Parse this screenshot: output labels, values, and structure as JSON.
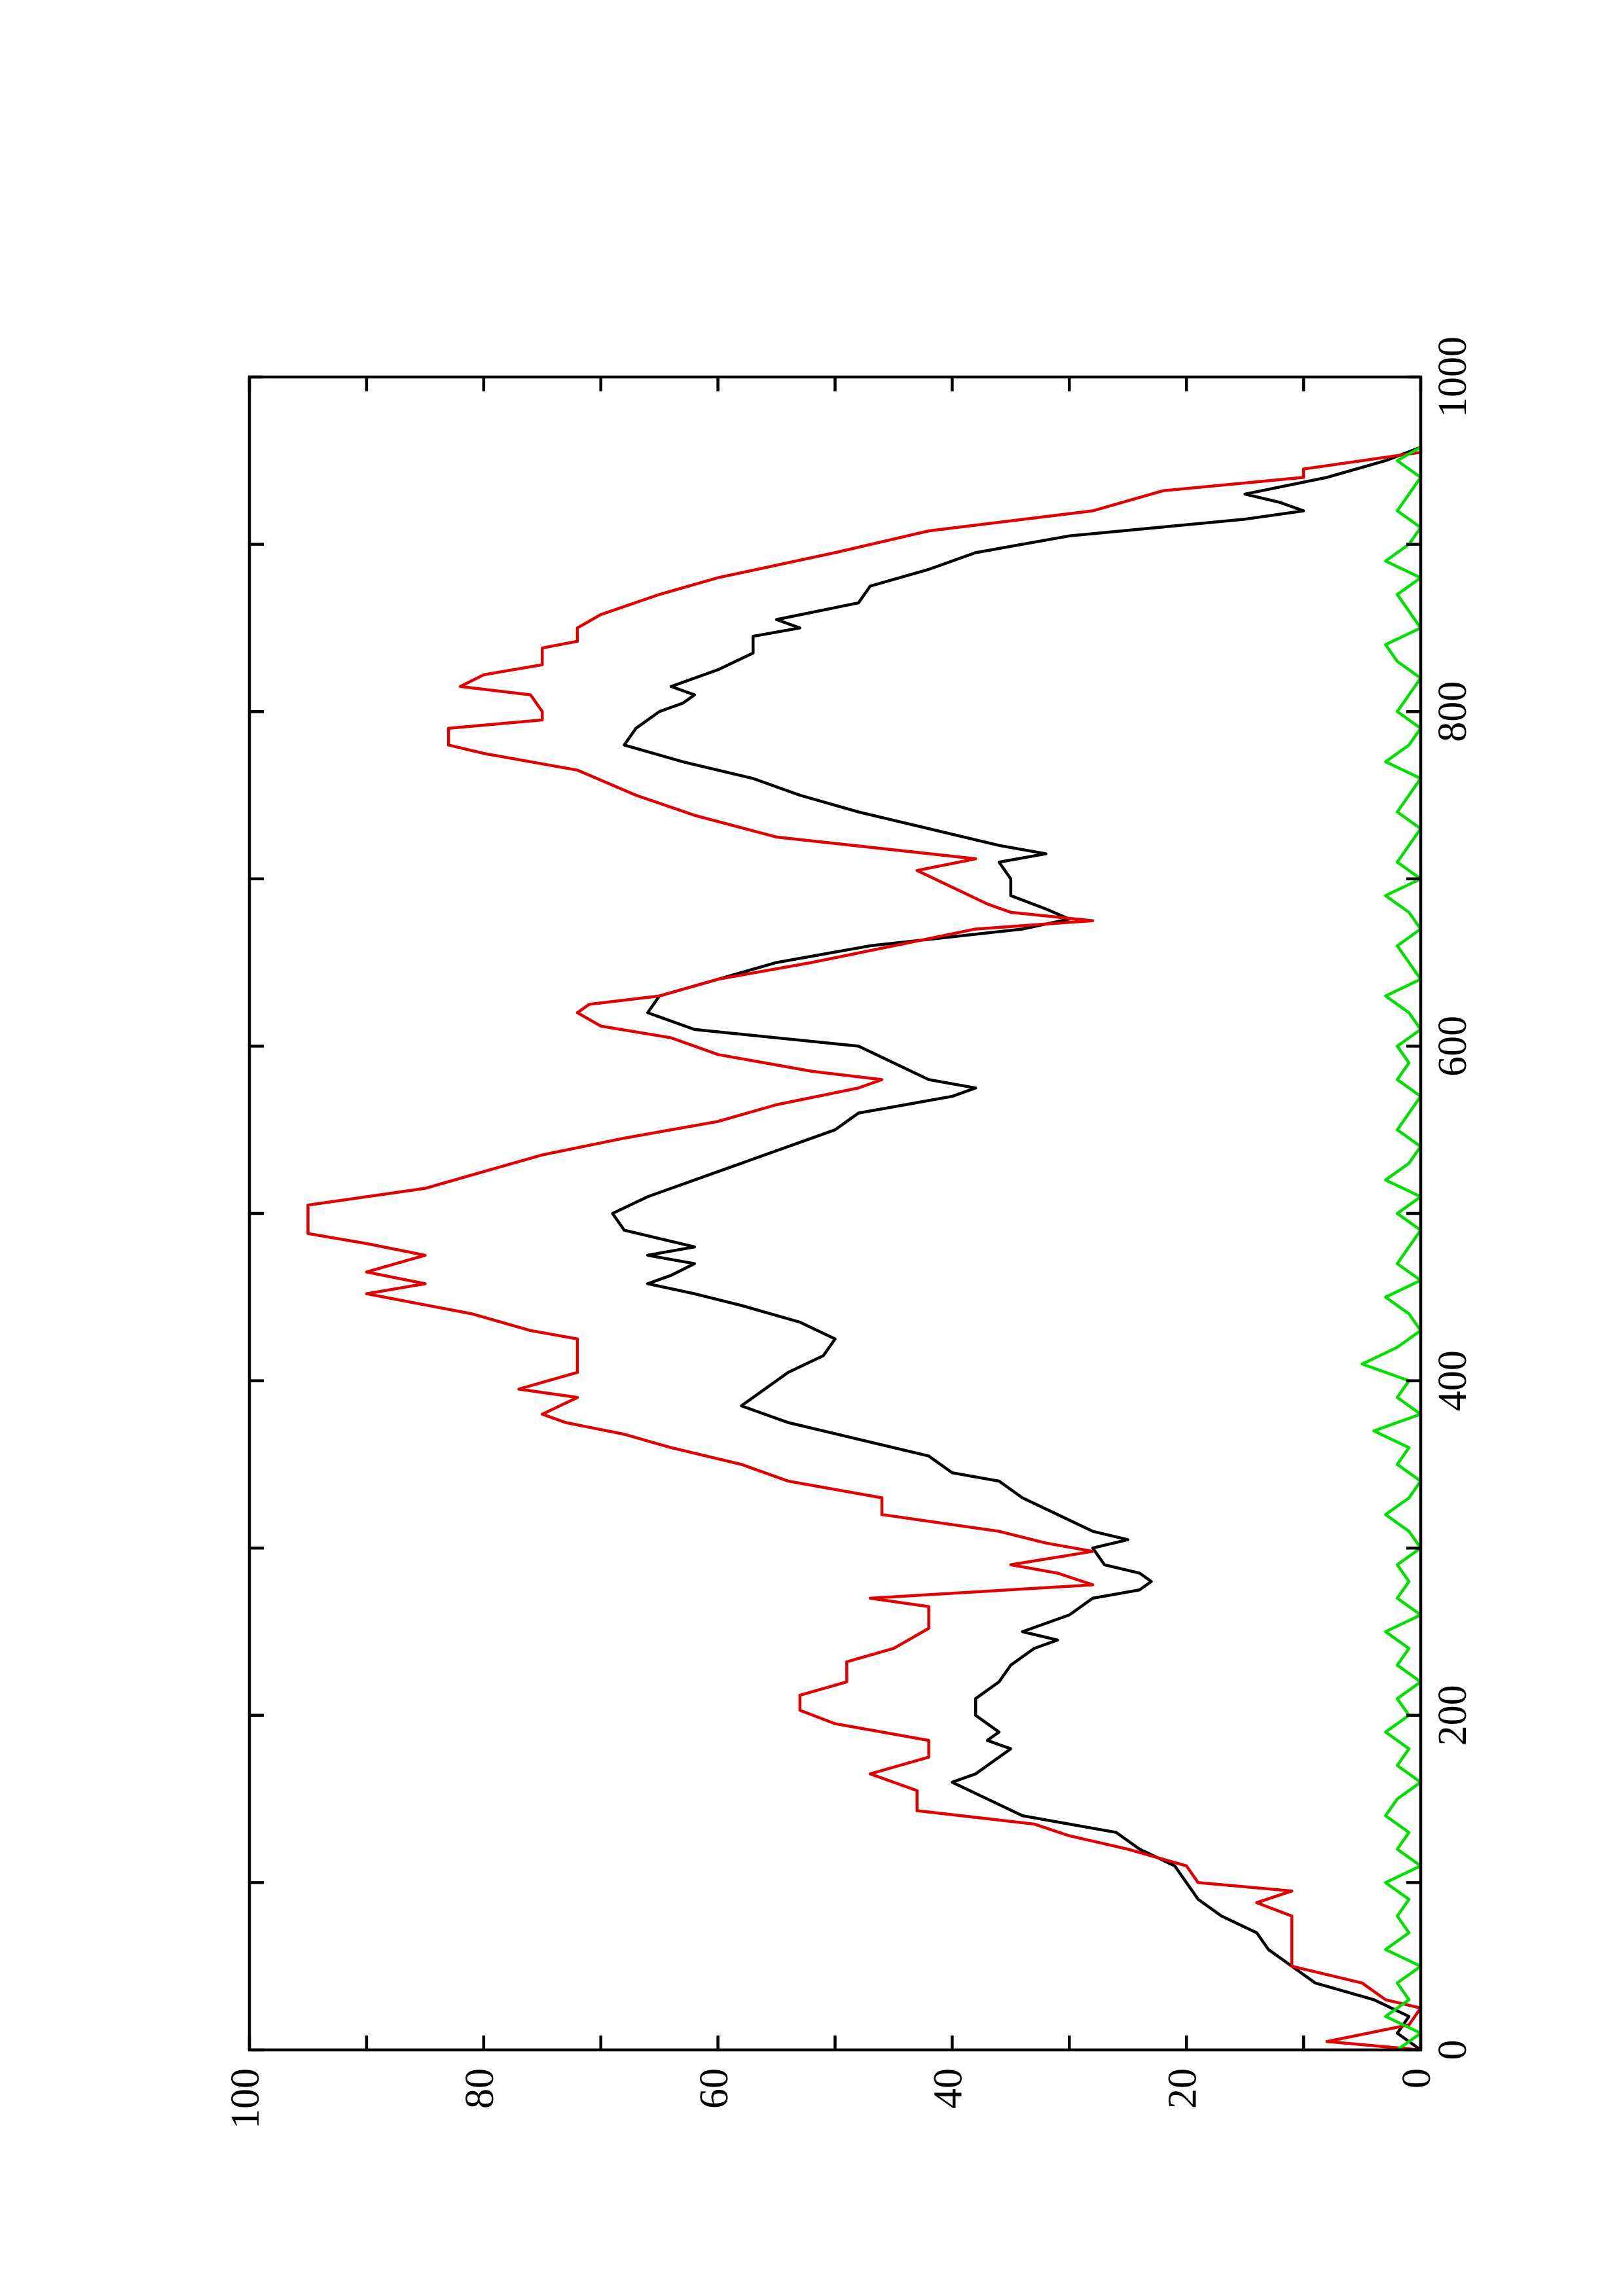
{
  "chart_data": {
    "type": "line",
    "xlim": [
      0,
      1000
    ],
    "xticks": [
      0,
      200,
      400,
      600,
      800,
      1000
    ],
    "xminorticks": [
      100,
      300,
      500,
      700,
      900
    ],
    "ylim": [
      0,
      100
    ],
    "yticks": [
      0,
      20,
      40,
      60,
      80,
      100
    ],
    "yminorticks": [
      10,
      30,
      50,
      70,
      90
    ],
    "series": [
      {
        "color": "#000000",
        "x": [
          0,
          10,
          20,
          30,
          40,
          50,
          60,
          70,
          80,
          90,
          100,
          110,
          120,
          130,
          140,
          150,
          160,
          165,
          170,
          180,
          185,
          190,
          200,
          210,
          220,
          230,
          240,
          245,
          250,
          260,
          270,
          275,
          280,
          285,
          290,
          300,
          305,
          310,
          320,
          330,
          340,
          345,
          355,
          365,
          375,
          385,
          395,
          405,
          415,
          425,
          435,
          445,
          452,
          458,
          463,
          470,
          475,
          480,
          490,
          500,
          510,
          520,
          530,
          540,
          550,
          560,
          570,
          575,
          580,
          590,
          600,
          610,
          620,
          630,
          640,
          650,
          660,
          670,
          676,
          682,
          690,
          700,
          710,
          715,
          720,
          730,
          740,
          750,
          760,
          770,
          780,
          790,
          800,
          805,
          810,
          815,
          825,
          835,
          845,
          850,
          855,
          865,
          875,
          885,
          895,
          905,
          915,
          920,
          925,
          930,
          940,
          950,
          958
        ],
        "values": [
          0,
          2,
          1,
          4,
          9,
          11,
          13,
          14,
          17,
          19,
          20,
          21,
          24,
          26,
          34,
          37,
          40,
          38,
          37,
          35,
          37,
          36,
          38,
          38,
          36,
          35,
          33,
          31,
          34,
          30,
          28,
          24,
          23,
          24,
          27,
          28,
          25,
          28,
          31,
          34,
          36,
          40,
          42,
          48,
          54,
          58,
          56,
          54,
          51,
          50,
          53,
          58,
          62,
          66,
          64,
          62,
          66,
          62,
          68,
          69,
          66,
          62,
          58,
          54,
          50,
          48,
          40,
          38,
          42,
          45,
          48,
          62,
          66,
          65,
          60,
          55,
          47,
          34,
          30,
          32,
          35,
          35,
          36,
          32,
          36,
          42,
          48,
          53,
          57,
          63,
          68,
          67,
          65,
          63,
          62,
          64,
          60,
          57,
          57,
          53,
          55,
          48,
          47,
          42,
          38,
          30,
          15,
          10,
          12,
          15,
          8,
          3,
          0
        ]
      },
      {
        "color": "#e00000",
        "x": [
          0,
          5,
          15,
          25,
          30,
          40,
          50,
          80,
          88,
          95,
          100,
          110,
          120,
          128,
          135,
          143,
          155,
          165,
          175,
          185,
          195,
          203,
          212,
          220,
          232,
          240,
          252,
          265,
          270,
          278,
          285,
          290,
          298,
          303,
          310,
          320,
          330,
          340,
          350,
          360,
          368,
          375,
          380,
          390,
          395,
          405,
          425,
          430,
          440,
          452,
          458,
          465,
          475,
          482,
          488,
          505,
          515,
          525,
          535,
          545,
          555,
          565,
          575,
          580,
          585,
          595,
          605,
          612,
          620,
          625,
          630,
          640,
          650,
          660,
          670,
          675,
          680,
          685,
          695,
          705,
          712,
          725,
          738,
          750,
          765,
          775,
          780,
          790,
          795,
          800,
          810,
          815,
          822,
          828,
          838,
          842,
          850,
          858,
          870,
          880,
          895,
          908,
          920,
          932,
          940,
          945,
          950,
          955,
          958
        ],
        "values": [
          0,
          8,
          1,
          0,
          3,
          5,
          11,
          11,
          14,
          11,
          19,
          20,
          25,
          30,
          33,
          43,
          43,
          47,
          42,
          42,
          50,
          53,
          53,
          49,
          49,
          45,
          42,
          42,
          47,
          28,
          31,
          35,
          28,
          32,
          36,
          46,
          46,
          54,
          58,
          64,
          68,
          73,
          75,
          72,
          77,
          72,
          72,
          76,
          81,
          90,
          85,
          90,
          85,
          90,
          95,
          95,
          85,
          80,
          75,
          68,
          60,
          55,
          48,
          46,
          52,
          60,
          64,
          70,
          72,
          71,
          65,
          60,
          52,
          45,
          38,
          28,
          35,
          37,
          40,
          43,
          38,
          55,
          62,
          67,
          72,
          80,
          83,
          83,
          75,
          75,
          76,
          82,
          80,
          75,
          75,
          72,
          72,
          70,
          65,
          60,
          50,
          42,
          28,
          22,
          10,
          10,
          5,
          0,
          0
        ]
      },
      {
        "color": "#00e000",
        "x": [
          0,
          10,
          20,
          30,
          40,
          50,
          60,
          70,
          80,
          90,
          100,
          110,
          120,
          130,
          140,
          150,
          160,
          170,
          180,
          190,
          200,
          210,
          220,
          230,
          240,
          250,
          260,
          270,
          280,
          290,
          300,
          310,
          320,
          330,
          340,
          350,
          360,
          370,
          380,
          390,
          400,
          410,
          420,
          430,
          440,
          450,
          460,
          470,
          480,
          490,
          500,
          510,
          520,
          530,
          540,
          550,
          560,
          570,
          580,
          590,
          600,
          610,
          620,
          630,
          640,
          650,
          660,
          670,
          680,
          690,
          700,
          710,
          720,
          730,
          740,
          750,
          760,
          770,
          780,
          790,
          800,
          810,
          820,
          830,
          840,
          850,
          860,
          870,
          880,
          890,
          900,
          910,
          920,
          930,
          940,
          950,
          958
        ],
        "values": [
          2,
          0,
          3,
          1,
          2,
          0,
          3,
          1,
          2,
          1,
          3,
          0,
          2,
          1,
          3,
          2,
          0,
          2,
          1,
          3,
          1,
          2,
          0,
          2,
          1,
          3,
          0,
          2,
          1,
          2,
          0,
          1,
          3,
          1,
          0,
          2,
          1,
          4,
          0,
          2,
          1,
          5,
          2,
          0,
          1,
          3,
          0,
          2,
          1,
          0,
          2,
          0,
          3,
          1,
          0,
          2,
          1,
          0,
          2,
          1,
          2,
          0,
          1,
          3,
          0,
          1,
          2,
          0,
          1,
          3,
          0,
          2,
          1,
          0,
          2,
          1,
          0,
          3,
          1,
          0,
          2,
          1,
          0,
          2,
          3,
          0,
          1,
          2,
          0,
          3,
          1,
          0,
          2,
          1,
          0,
          2,
          0
        ]
      }
    ]
  }
}
